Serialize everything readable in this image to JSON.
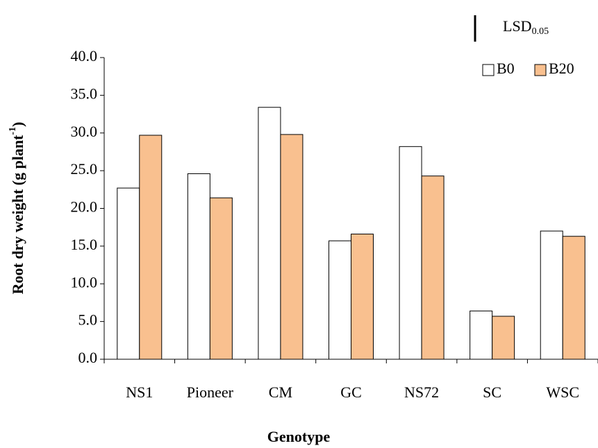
{
  "chart_data": {
    "type": "bar",
    "xlabel": "Genotype",
    "ylabel": {
      "text": "Root dry weight (g plant",
      "superscript": "-1",
      "tail": ")"
    },
    "categories": [
      "NS1",
      "Pioneer",
      "CM",
      "GC",
      "NS72",
      "SC",
      "WSC"
    ],
    "series": [
      {
        "name": "B0",
        "color": "#ffffff",
        "values": [
          22.7,
          24.6,
          33.4,
          15.7,
          28.2,
          6.4,
          17.0
        ]
      },
      {
        "name": "B20",
        "color": "#f9c08f",
        "values": [
          29.7,
          21.4,
          29.8,
          16.6,
          24.3,
          5.7,
          16.3
        ]
      }
    ],
    "ylim": [
      0,
      40
    ],
    "yticks": [
      {
        "value": 0,
        "label": "0.0"
      },
      {
        "value": 5,
        "label": "5.0"
      },
      {
        "value": 10,
        "label": "10.0"
      },
      {
        "value": 15,
        "label": "15.0"
      },
      {
        "value": 20,
        "label": "20.0"
      },
      {
        "value": 25,
        "label": "25.0"
      },
      {
        "value": 30,
        "label": "30.0"
      },
      {
        "value": 35,
        "label": "35.0"
      },
      {
        "value": 40,
        "label": "40.0"
      }
    ],
    "lsd": {
      "label": "LSD",
      "subscript": "0.05",
      "value": 3.5
    },
    "legend": "top-right"
  }
}
